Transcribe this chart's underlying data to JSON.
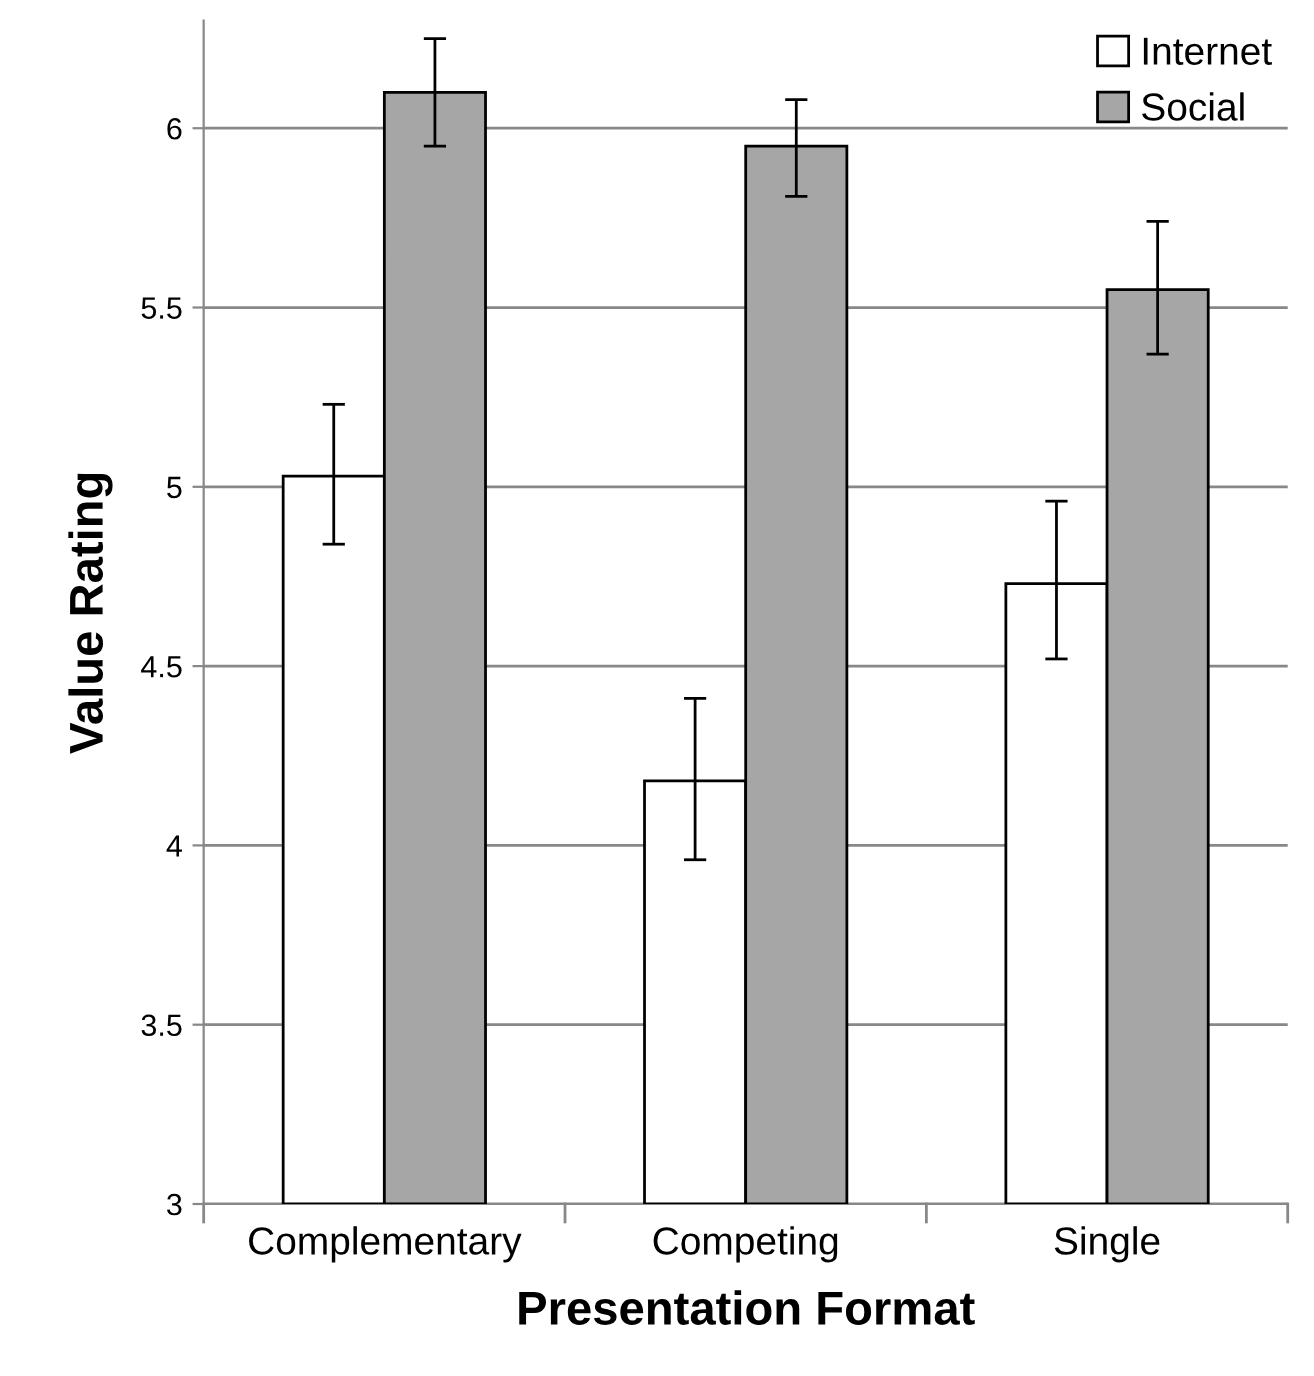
{
  "chart_data": {
    "type": "bar",
    "xlabel": "Presentation Format",
    "ylabel": "Value Rating",
    "categories": [
      "Complementary",
      "Competing",
      "Single"
    ],
    "series": [
      {
        "name": "Internet",
        "color": "#ffffff",
        "values": [
          5.03,
          4.18,
          4.73
        ],
        "errors": [
          [
            4.84,
            5.23
          ],
          [
            3.96,
            4.41
          ],
          [
            4.52,
            4.96
          ]
        ]
      },
      {
        "name": "Social",
        "color": "#a6a6a6",
        "values": [
          6.1,
          5.95,
          5.55
        ],
        "errors": [
          [
            5.95,
            6.25
          ],
          [
            5.81,
            6.08
          ],
          [
            5.37,
            5.74
          ]
        ]
      }
    ],
    "ylim": [
      3,
      6.3
    ],
    "yticks": [
      3,
      3.5,
      4,
      4.5,
      5,
      5.5,
      6
    ],
    "grid": "y",
    "legend": "top right"
  }
}
